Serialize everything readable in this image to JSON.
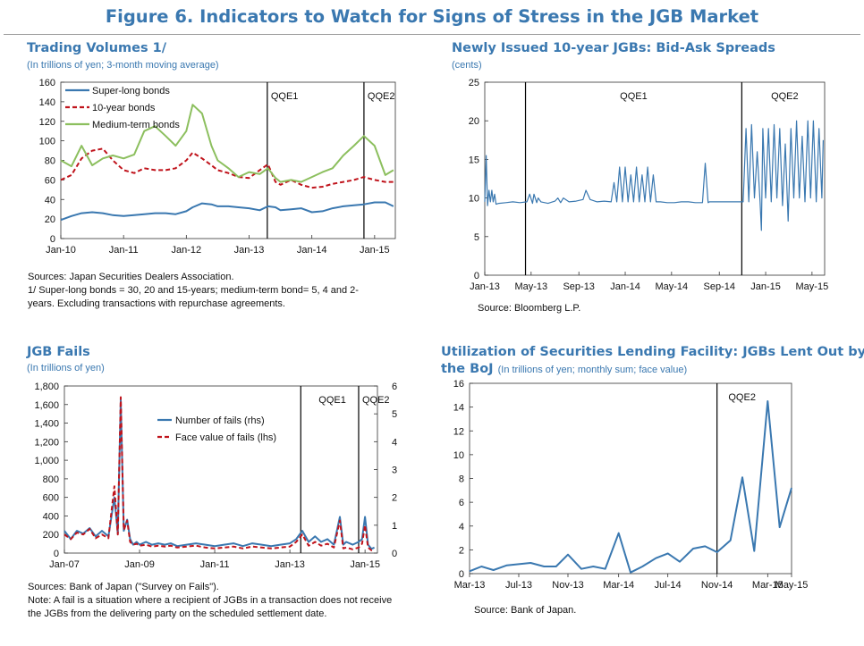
{
  "figure": {
    "title": "Figure 6. Indicators to Watch for Signs of Stress in the JGB Market"
  },
  "panels": {
    "trading": {
      "title": "Trading Volumes 1/",
      "subtitle": "(In trillions of yen; 3-month moving average)",
      "notes": [
        "Sources: Japan Securities Dealers Association.",
        "1/ Super-long bonds = 30, 20 and 15-years; medium-term bond= 5, 4 and 2-",
        "years. Excluding transactions with repurchase agreements."
      ]
    },
    "spreads": {
      "title": "Newly Issued 10-year JGBs: Bid-Ask Spreads",
      "subtitle": "(cents)",
      "notes": [
        "Source: Bloomberg L.P."
      ]
    },
    "fails": {
      "title": "JGB Fails",
      "subtitle": "(In trillions of yen)",
      "notes": [
        "Sources: Bank of Japan (\"Survey on Fails\").",
        "Note: A fail is a situation where a recipient of JGBs in a transaction does not receive",
        "the JGBs from the delivering party on the scheduled settlement date."
      ]
    },
    "lending": {
      "title_line1": "Utilization of Securities Lending Facility: JGBs Lent Out by",
      "title_line2": "the BoJ",
      "subtitle": "(In trillions of yen; monthly sum; face value)",
      "notes": [
        "Source: Bank of Japan."
      ]
    }
  },
  "chart_data": [
    {
      "id": "trading",
      "type": "line",
      "title": "Trading Volumes 1/",
      "ylim": [
        0,
        160
      ],
      "yticks": [
        0,
        20,
        40,
        60,
        80,
        100,
        120,
        140,
        160
      ],
      "xlim": [
        2010.0,
        2015.33
      ],
      "xtick_labels": [
        "Jan-10",
        "Jan-11",
        "Jan-12",
        "Jan-13",
        "Jan-14",
        "Jan-15"
      ],
      "xtick_values": [
        2010.0,
        2011.0,
        2012.0,
        2013.0,
        2014.0,
        2015.0
      ],
      "legend_position": "top-left",
      "vlines": [
        {
          "x": 2013.29,
          "label": "QQE1"
        },
        {
          "x": 2014.83,
          "label": "QQE2"
        }
      ],
      "x": [
        2010.0,
        2010.17,
        2010.33,
        2010.5,
        2010.67,
        2010.83,
        2011.0,
        2011.17,
        2011.33,
        2011.5,
        2011.67,
        2011.83,
        2012.0,
        2012.1,
        2012.25,
        2012.4,
        2012.5,
        2012.67,
        2012.83,
        2013.0,
        2013.17,
        2013.3,
        2013.42,
        2013.5,
        2013.67,
        2013.83,
        2014.0,
        2014.17,
        2014.33,
        2014.5,
        2014.67,
        2014.83,
        2015.0,
        2015.17,
        2015.3
      ],
      "series": [
        {
          "name": "Super-long bonds",
          "color": "#3a78b0",
          "style": "solid",
          "values": [
            19,
            23,
            26,
            27,
            26,
            24,
            23,
            24,
            25,
            26,
            26,
            25,
            28,
            32,
            36,
            35,
            33,
            33,
            32,
            31,
            29,
            33,
            32,
            29,
            30,
            31,
            27,
            28,
            31,
            33,
            34,
            35,
            37,
            37,
            33
          ]
        },
        {
          "name": "10-year bonds",
          "color": "#c0141c",
          "style": "dashed",
          "values": [
            60,
            65,
            82,
            90,
            92,
            80,
            70,
            67,
            72,
            70,
            70,
            72,
            80,
            88,
            82,
            75,
            70,
            67,
            63,
            62,
            70,
            76,
            58,
            55,
            60,
            55,
            52,
            53,
            56,
            58,
            60,
            63,
            60,
            58,
            58
          ]
        },
        {
          "name": "Medium-term bonds",
          "color": "#8cbf5e",
          "style": "solid",
          "values": [
            80,
            74,
            95,
            75,
            82,
            85,
            82,
            86,
            110,
            115,
            105,
            95,
            110,
            137,
            128,
            95,
            80,
            72,
            63,
            68,
            66,
            72,
            62,
            58,
            60,
            58,
            63,
            68,
            72,
            85,
            95,
            105,
            95,
            65,
            70
          ]
        }
      ]
    },
    {
      "id": "spreads",
      "type": "line",
      "title": "Newly Issued 10-year JGBs: Bid-Ask Spreads",
      "ylim": [
        0,
        25
      ],
      "yticks": [
        0,
        5,
        10,
        15,
        20,
        25
      ],
      "xlim": [
        2013.0,
        2015.42
      ],
      "xtick_labels": [
        "Jan-13",
        "May-13",
        "Sep-13",
        "Jan-14",
        "May-14",
        "Sep-14",
        "Jan-15",
        "May-15"
      ],
      "xtick_values": [
        2013.0,
        2013.33,
        2013.67,
        2014.0,
        2014.33,
        2014.67,
        2015.0,
        2015.33
      ],
      "vlines": [
        {
          "x": 2013.29,
          "label": "QQE1"
        },
        {
          "x": 2014.83,
          "label": "QQE2"
        }
      ],
      "series": [
        {
          "name": "",
          "color": "#3a78b0",
          "style": "solid",
          "x": [
            2013.0,
            2013.01,
            2013.02,
            2013.03,
            2013.04,
            2013.05,
            2013.06,
            2013.07,
            2013.08,
            2013.1,
            2013.15,
            2013.2,
            2013.25,
            2013.3,
            2013.32,
            2013.34,
            2013.35,
            2013.37,
            2013.38,
            2013.4,
            2013.45,
            2013.5,
            2013.52,
            2013.54,
            2013.56,
            2013.6,
            2013.65,
            2013.7,
            2013.72,
            2013.75,
            2013.8,
            2013.85,
            2013.9,
            2013.92,
            2013.94,
            2013.96,
            2013.98,
            2014.0,
            2014.02,
            2014.04,
            2014.06,
            2014.08,
            2014.1,
            2014.12,
            2014.14,
            2014.16,
            2014.18,
            2014.2,
            2014.22,
            2014.25,
            2014.3,
            2014.35,
            2014.4,
            2014.45,
            2014.5,
            2014.55,
            2014.57,
            2014.59,
            2014.6,
            2014.7,
            2014.8,
            2014.84,
            2014.86,
            2014.88,
            2014.9,
            2014.92,
            2014.94,
            2014.96,
            2014.97,
            2014.98,
            2015.0,
            2015.02,
            2015.04,
            2015.06,
            2015.08,
            2015.1,
            2015.12,
            2015.14,
            2015.16,
            2015.18,
            2015.2,
            2015.22,
            2015.24,
            2015.26,
            2015.28,
            2015.3,
            2015.32,
            2015.34,
            2015.36,
            2015.38,
            2015.4,
            2015.41
          ],
          "values": [
            9.5,
            15.5,
            9,
            11,
            9.5,
            11,
            9.5,
            10.5,
            9.2,
            9.3,
            9.4,
            9.5,
            9.4,
            9.5,
            10.5,
            9.3,
            10.5,
            9.4,
            10,
            9.5,
            9.3,
            9.6,
            10,
            9.4,
            10,
            9.5,
            9.6,
            9.8,
            11,
            9.8,
            9.5,
            9.6,
            9.5,
            12,
            9.5,
            14,
            9.5,
            14,
            9.5,
            13,
            9.5,
            14,
            9.5,
            13,
            9.5,
            14,
            9.5,
            13,
            9.5,
            9.5,
            9.4,
            9.4,
            9.5,
            9.5,
            9.4,
            9.4,
            14.5,
            9.4,
            9.5,
            9.5,
            9.5,
            9.5,
            19,
            9.5,
            19.5,
            10,
            16,
            9.5,
            5.8,
            19,
            10,
            19,
            9.5,
            19.5,
            10,
            19,
            9,
            17,
            7,
            19,
            10,
            20,
            10,
            18,
            9.5,
            20,
            10,
            20,
            9.5,
            19,
            10,
            17.5
          ]
        }
      ]
    },
    {
      "id": "fails",
      "type": "line",
      "title": "JGB Fails",
      "ylim_left": [
        0,
        1800
      ],
      "yticks_left": [
        0,
        200,
        400,
        600,
        800,
        1000,
        1200,
        1400,
        1600,
        1800
      ],
      "ytick_labels_left": [
        "0",
        "200",
        "400",
        "600",
        "800",
        "1,000",
        "1,200",
        "1,400",
        "1,600",
        "1,800"
      ],
      "ylim_right": [
        0,
        6
      ],
      "yticks_right": [
        0,
        1,
        2,
        3,
        4,
        5,
        6
      ],
      "xlim": [
        2007.0,
        2015.33
      ],
      "xtick_labels": [
        "Jan-07",
        "Jan-09",
        "Jan-11",
        "Jan-13",
        "Jan-15"
      ],
      "xtick_values": [
        2007.0,
        2009.0,
        2011.0,
        2013.0,
        2015.0
      ],
      "legend_position": "top-center",
      "vlines": [
        {
          "x": 2013.29,
          "label": "QQE1"
        },
        {
          "x": 2014.83,
          "label": "QQE2"
        }
      ],
      "x": [
        2007.0,
        2007.17,
        2007.33,
        2007.5,
        2007.67,
        2007.83,
        2008.0,
        2008.17,
        2008.33,
        2008.42,
        2008.5,
        2008.58,
        2008.67,
        2008.75,
        2008.83,
        2008.92,
        2009.0,
        2009.17,
        2009.33,
        2009.5,
        2009.67,
        2009.83,
        2010.0,
        2010.25,
        2010.5,
        2010.75,
        2011.0,
        2011.25,
        2011.5,
        2011.75,
        2012.0,
        2012.25,
        2012.5,
        2012.75,
        2013.0,
        2013.17,
        2013.33,
        2013.5,
        2013.67,
        2013.83,
        2014.0,
        2014.17,
        2014.33,
        2014.42,
        2014.5,
        2014.67,
        2014.83,
        2014.92,
        2015.0,
        2015.08,
        2015.17,
        2015.25
      ],
      "series": [
        {
          "name": "Number of fails (rhs)",
          "axis": "right",
          "color": "#3a78b0",
          "style": "solid",
          "values": [
            0.8,
            0.5,
            0.8,
            0.7,
            0.9,
            0.6,
            0.8,
            0.6,
            2.0,
            0.7,
            5.5,
            0.8,
            1.2,
            0.5,
            0.3,
            0.4,
            0.3,
            0.4,
            0.3,
            0.35,
            0.3,
            0.35,
            0.25,
            0.3,
            0.35,
            0.3,
            0.25,
            0.3,
            0.35,
            0.25,
            0.35,
            0.3,
            0.25,
            0.3,
            0.35,
            0.5,
            0.8,
            0.4,
            0.6,
            0.4,
            0.5,
            0.3,
            1.3,
            0.3,
            0.4,
            0.3,
            0.4,
            0.5,
            1.3,
            0.3,
            0.15,
            0.2
          ]
        },
        {
          "name": "Face value of fails (lhs)",
          "axis": "left",
          "color": "#c0141c",
          "style": "dashed",
          "values": [
            200,
            150,
            220,
            200,
            260,
            160,
            200,
            160,
            720,
            200,
            1680,
            250,
            350,
            120,
            90,
            100,
            80,
            90,
            70,
            80,
            70,
            80,
            60,
            70,
            80,
            60,
            50,
            60,
            70,
            50,
            70,
            60,
            50,
            60,
            70,
            120,
            200,
            80,
            120,
            80,
            100,
            60,
            350,
            50,
            60,
            40,
            60,
            100,
            300,
            60,
            30,
            40
          ]
        }
      ]
    },
    {
      "id": "lending",
      "type": "line",
      "title": "Utilization of Securities Lending Facility: JGBs Lent Out by the BoJ",
      "ylim": [
        0,
        16
      ],
      "yticks": [
        0,
        2,
        4,
        6,
        8,
        10,
        12,
        14,
        16
      ],
      "xlim": [
        2013.17,
        2015.33
      ],
      "xtick_labels": [
        "Mar-13",
        "Jul-13",
        "Nov-13",
        "Mar-14",
        "Jul-14",
        "Nov-14",
        "Mar-15",
        "May-15"
      ],
      "xtick_values": [
        2013.17,
        2013.5,
        2013.83,
        2014.17,
        2014.5,
        2014.83,
        2015.17,
        2015.33
      ],
      "vlines": [
        {
          "x": 2014.83,
          "label": "QQE2"
        }
      ],
      "x": [
        2013.17,
        2013.25,
        2013.33,
        2013.42,
        2013.5,
        2013.58,
        2013.67,
        2013.75,
        2013.83,
        2013.92,
        2014.0,
        2014.08,
        2014.17,
        2014.25,
        2014.33,
        2014.42,
        2014.5,
        2014.58,
        2014.67,
        2014.75,
        2014.83,
        2014.92,
        2015.0,
        2015.08,
        2015.17,
        2015.25,
        2015.33
      ],
      "series": [
        {
          "name": "",
          "color": "#3a78b0",
          "style": "solid",
          "values": [
            0.2,
            0.6,
            0.3,
            0.7,
            0.8,
            0.9,
            0.6,
            0.6,
            1.6,
            0.4,
            0.6,
            0.4,
            3.4,
            0.1,
            0.6,
            1.3,
            1.7,
            1.0,
            2.1,
            2.3,
            1.8,
            2.8,
            8.1,
            1.9,
            14.5,
            3.9,
            7.2
          ]
        }
      ]
    }
  ]
}
